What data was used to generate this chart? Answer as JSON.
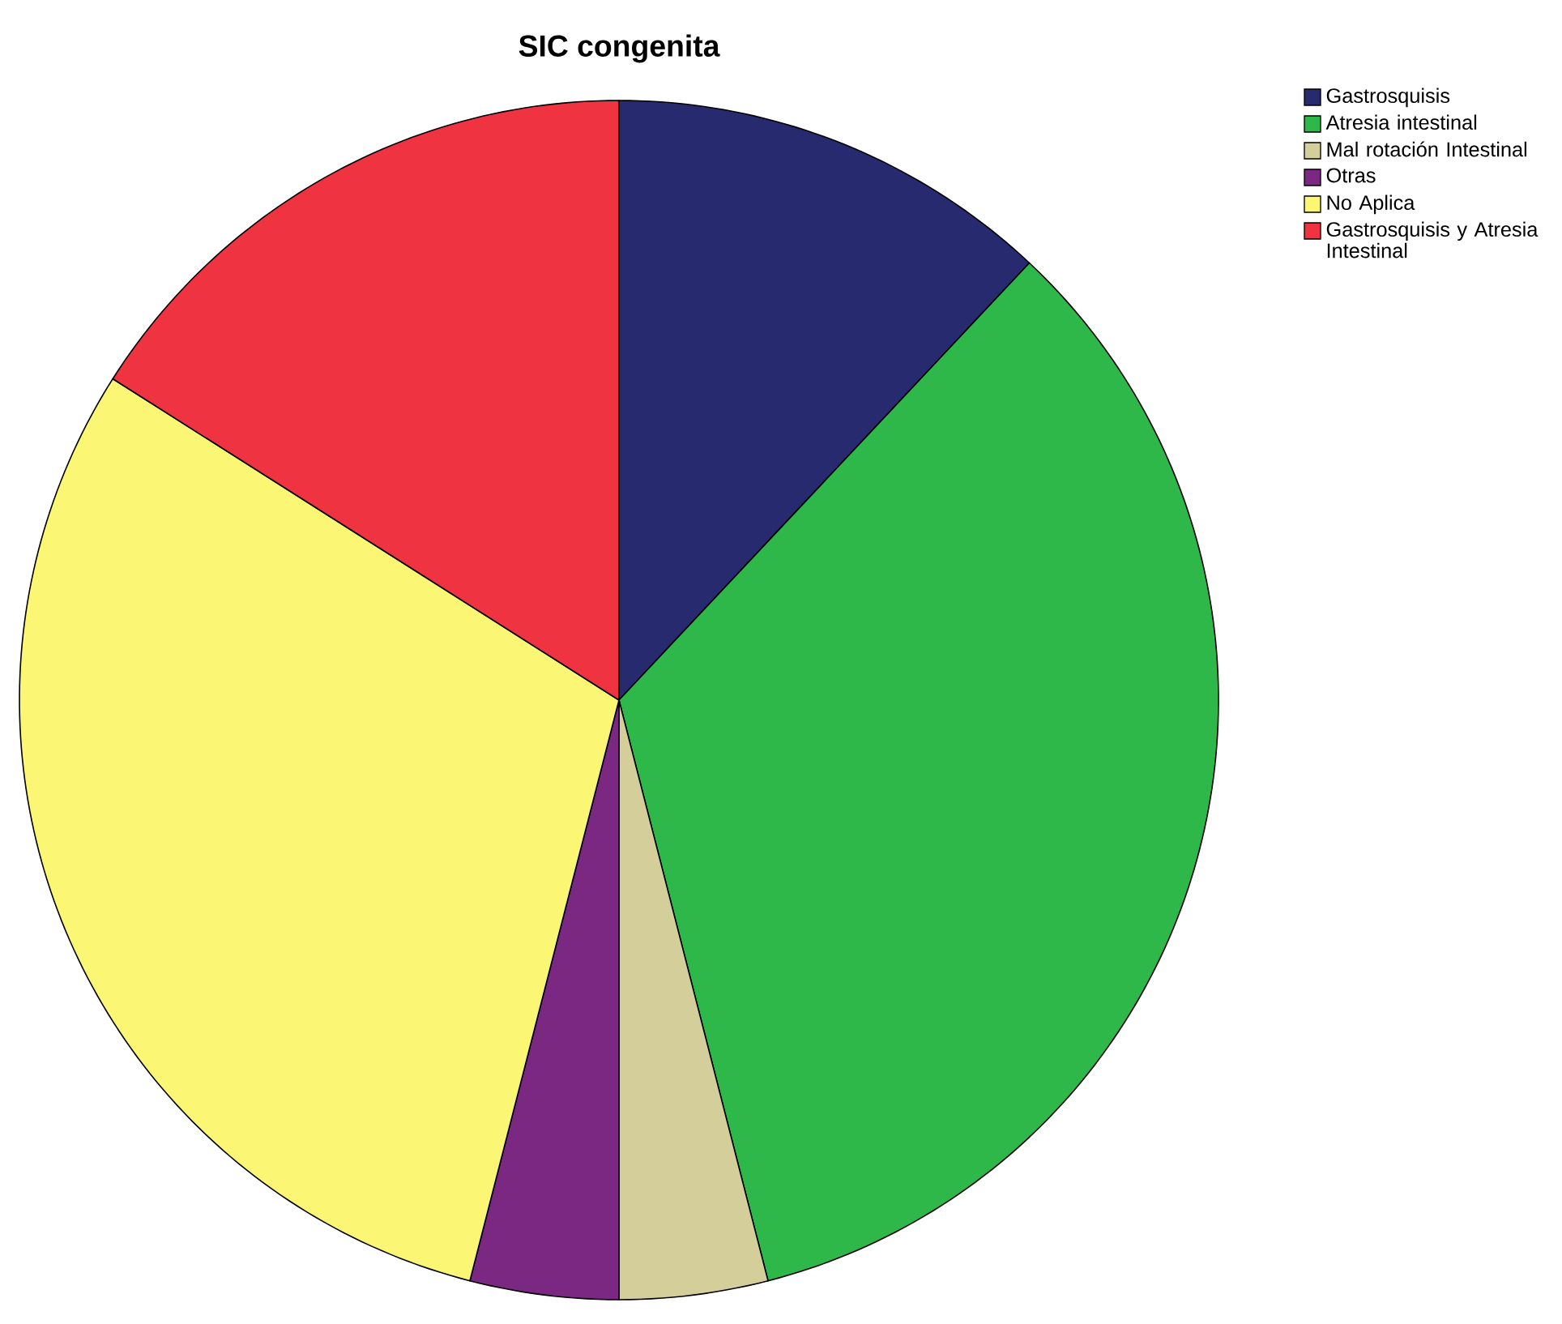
{
  "chart_data": {
    "type": "pie",
    "title": "SIC congenita",
    "categories": [
      "Gastrosquisis",
      "Atresia intestinal",
      "Mal rotación Intestinal",
      "Otras",
      "No Aplica",
      "Gastrosquisis y Atresia Intestinal"
    ],
    "values": [
      12,
      34,
      4,
      4,
      30,
      16
    ],
    "colors": [
      "#272a6e",
      "#2fb84a",
      "#d4cf9a",
      "#7b2883",
      "#fbf674",
      "#ef3340"
    ],
    "legend": "top right"
  }
}
